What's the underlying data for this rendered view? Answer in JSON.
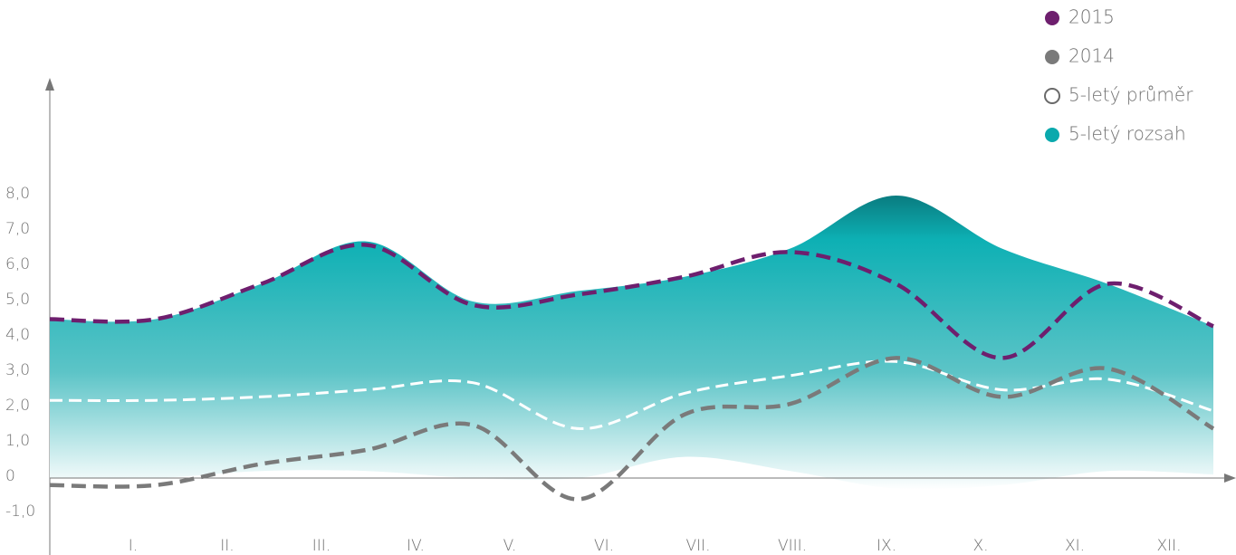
{
  "chart_data": {
    "type": "line",
    "categories": [
      "I.",
      "II.",
      "III.",
      "IV.",
      "V.",
      "VI.",
      "VII.",
      "VIII.",
      "IX.",
      "X.",
      "XI.",
      "XII."
    ],
    "ylim": [
      -1.5,
      10.5
    ],
    "yticks": [
      {
        "value": -1,
        "label": "-1,0"
      },
      0,
      {
        "value": 1,
        "label": "1,0"
      },
      {
        "value": 2,
        "label": "2,0"
      },
      {
        "value": 3,
        "label": "3,0"
      },
      {
        "value": 4,
        "label": "4,0"
      },
      {
        "value": 5,
        "label": "5,0"
      },
      {
        "value": 6,
        "label": "6,0"
      },
      {
        "value": 7,
        "label": "7,0"
      },
      {
        "value": 8,
        "label": "8,0"
      }
    ],
    "series": [
      {
        "name": "2015",
        "color": "#6e1f6e",
        "values": [
          4.5,
          4.5,
          5.5,
          6.6,
          4.9,
          5.2,
          5.7,
          6.4,
          5.5,
          3.4,
          5.5,
          4.3
        ]
      },
      {
        "name": "2014",
        "color": "#7a7a7a",
        "values": [
          -0.2,
          -0.2,
          0.4,
          0.8,
          1.5,
          -0.6,
          1.8,
          2.1,
          3.4,
          2.3,
          3.1,
          1.4
        ]
      },
      {
        "name": "5-letý průměr",
        "color": "#ffffff",
        "values": [
          2.2,
          2.2,
          2.3,
          2.5,
          2.7,
          1.4,
          2.4,
          2.9,
          3.3,
          2.5,
          2.8,
          1.9
        ]
      },
      {
        "name": "5-letý rozsah",
        "color": "#0aa9ad",
        "values": [
          4.5,
          4.5,
          5.5,
          6.7,
          5.0,
          5.3,
          5.7,
          6.5,
          8.0,
          6.5,
          5.5,
          4.3
        ],
        "lower": [
          0,
          0,
          0.2,
          0.2,
          0,
          0,
          0.6,
          0.2,
          -0.3,
          -0.2,
          0.2,
          0.1
        ]
      }
    ]
  }
}
